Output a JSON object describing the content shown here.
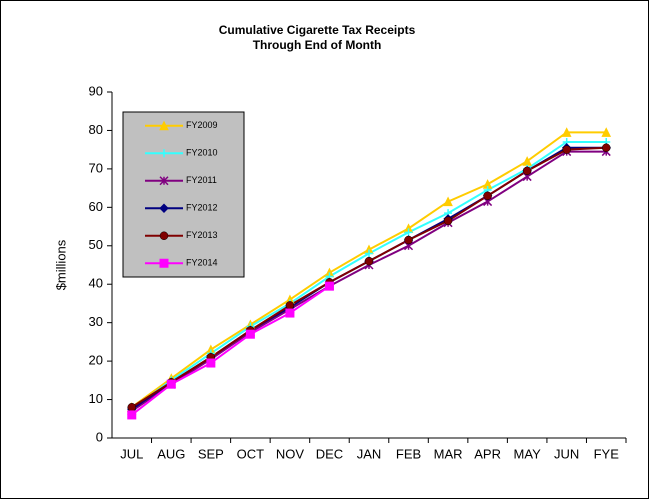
{
  "chart_data": {
    "type": "line",
    "title": [
      "Cumulative Cigarette Tax Receipts",
      "Through End of Month"
    ],
    "y_label": "$millions",
    "categories": [
      "JUL",
      "AUG",
      "SEP",
      "OCT",
      "NOV",
      "DEC",
      "JAN",
      "FEB",
      "MAR",
      "APR",
      "MAY",
      "JUN",
      "FYE"
    ],
    "ylim": [
      0,
      90
    ],
    "yticks": [
      0,
      10,
      20,
      30,
      40,
      50,
      60,
      70,
      80,
      90
    ],
    "legend": "upper left",
    "series": [
      {
        "name": "FY2009",
        "color": "#ffcc00",
        "marker": "triangle",
        "values": [
          8,
          15.5,
          23,
          29.5,
          36,
          43,
          49,
          54.5,
          61.5,
          66,
          72,
          79.5,
          79.5
        ]
      },
      {
        "name": "FY2010",
        "color": "#33ffff",
        "marker": "star",
        "values": [
          7.5,
          15,
          22,
          29,
          35,
          42,
          48,
          53.5,
          58.5,
          64.5,
          70,
          77,
          77
        ]
      },
      {
        "name": "FY2011",
        "color": "#800080",
        "marker": "x",
        "values": [
          7,
          14,
          20.5,
          27.5,
          33.5,
          39.5,
          45,
          50,
          56,
          61.5,
          68,
          74.5,
          74.5
        ]
      },
      {
        "name": "FY2012",
        "color": "#000080",
        "marker": "diamond",
        "values": [
          7.5,
          14.5,
          21,
          28,
          34,
          40.5,
          46,
          51.5,
          57,
          63,
          69.5,
          75.5,
          75.5
        ]
      },
      {
        "name": "FY2013",
        "color": "#800000",
        "marker": "circle",
        "values": [
          8,
          14.5,
          21,
          28,
          34.5,
          40.5,
          46,
          51.5,
          56.5,
          63,
          69.5,
          75,
          75.5
        ]
      },
      {
        "name": "FY2014",
        "color": "#ff00ff",
        "marker": "square",
        "values": [
          6,
          14,
          19.5,
          27,
          32.5,
          39.5,
          null,
          null,
          null,
          null,
          null,
          null,
          null
        ]
      }
    ]
  }
}
